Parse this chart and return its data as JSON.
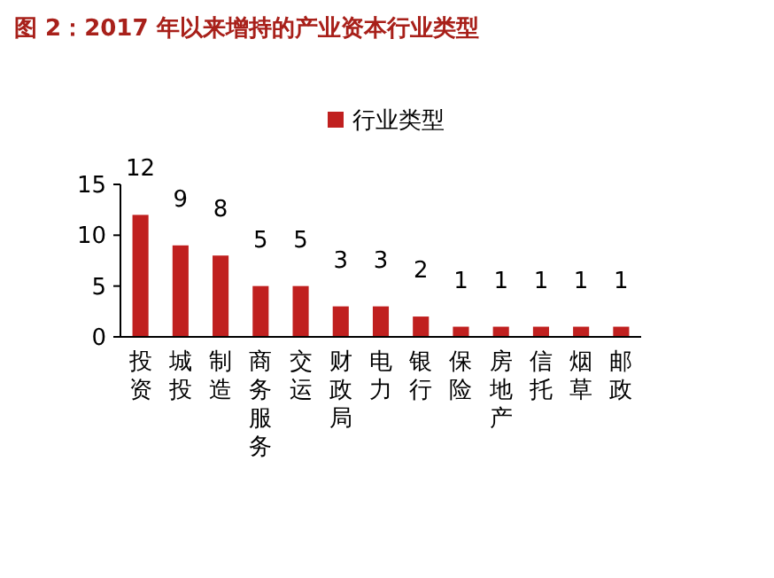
{
  "chart_data": {
    "type": "bar",
    "title": "图 2：2017 年以来增持的产业资本行业类型",
    "categories": [
      "投资",
      "城投",
      "制造",
      "商务服务",
      "交运",
      "财政局",
      "电力",
      "银行",
      "保险",
      "房地产",
      "信托",
      "烟草",
      "邮政"
    ],
    "series": [
      {
        "name": "行业类型",
        "color": "#c0201f",
        "values": [
          12,
          9,
          8,
          5,
          5,
          3,
          3,
          2,
          1,
          1,
          1,
          1,
          1
        ]
      }
    ],
    "ylim": [
      0,
      15
    ],
    "yticks": [
      0,
      5,
      10,
      15
    ],
    "grid": false,
    "legend": "top",
    "data_labels": true
  }
}
